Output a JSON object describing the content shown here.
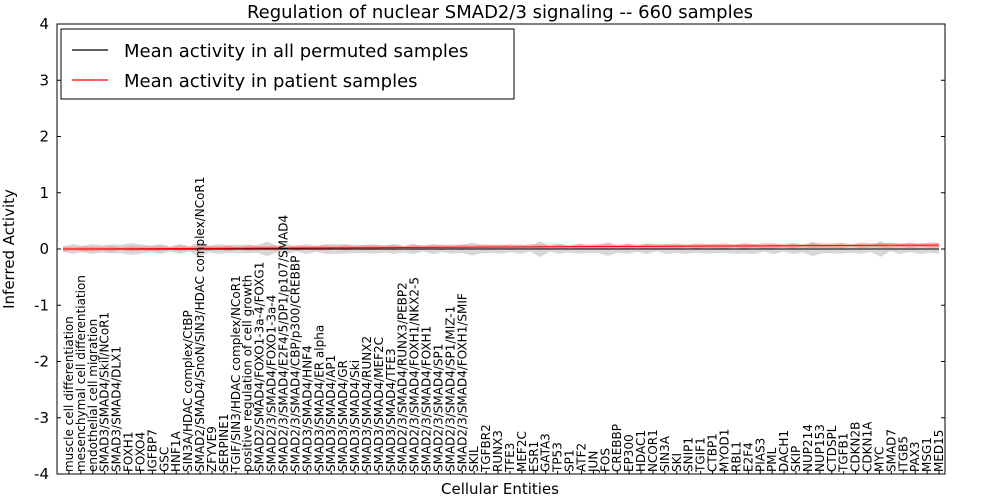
{
  "chart_data": {
    "type": "line",
    "title": "Regulation of nuclear SMAD2/3 signaling -- 660 samples",
    "xlabel": "Cellular Entities",
    "ylabel": "Inferred Activity",
    "ylim": [
      -4,
      4
    ],
    "yticks": [
      "-4",
      "-3",
      "-2",
      "-1",
      "0",
      "1",
      "2",
      "3",
      "4"
    ],
    "legend_position": "top-left",
    "series": [
      {
        "name": "Mean activity in all permuted samples",
        "color": "#000000"
      },
      {
        "name": "Mean activity in patient samples",
        "color": "#ff0000"
      }
    ],
    "categories": [
      "muscle cell differentiation",
      "mesenchymal cell differentiation",
      "endothelial cell migration",
      "SMAD3/SMAD4/Skil/NCoR1",
      "SMAD3/SMAD4/DLX1",
      "FOXH1",
      "FOXO4",
      "IGFBP7",
      "GSC",
      "HNF1A",
      "SIN3A/HDAC complex/CtBP",
      "SMAD2/SMAD4/SnoN/SIN3/HDAC complex/NCoR1",
      "ZFYVE9",
      "SERPINE1",
      "TGIF/SIN3/HDAC complex/NCoR1",
      "positive regulation of cell growth",
      "SMAD2/SMAD4/FOXO1-3a-4/FOXG1",
      "SMAD2/3/SMAD4/FOXO1-3a-4",
      "SMAD2/3/SMAD4/E2F4/5/DP1/p107/SMAD4",
      "SMAD2/3/SMAD4/CBP/p300/CREBBP",
      "SMAD3/SMAD4/HNF4",
      "SMAD3/SMAD4/ER alpha",
      "SMAD3/SMAD4/AP1",
      "SMAD3/SMAD4/GR",
      "SMAD3/SMAD4/Ski",
      "SMAD3/SMAD4/RUNX2",
      "SMAD3/SMAD4/MEF2C",
      "SMAD3/SMAD4/TFE3",
      "SMAD2/3/SMAD4/RUNX3/PEBP2",
      "SMAD2/3/SMAD4/FOXH1/NKX2-5",
      "SMAD2/3/SMAD4/FOXH1",
      "SMAD2/3/SMAD4/SP1",
      "SMAD2/3/SMAD4/SP1/MIZ-1",
      "SMAD2/3/SMAD4/FOXH1/SMIF",
      "SKIL",
      "TGFBR2",
      "RUNX3",
      "TFE3",
      "MEF2C",
      "ESR1",
      "GATA3",
      "TP53",
      "SP1",
      "ATF2",
      "JUN",
      "FOS",
      "CREBBP",
      "EP300",
      "HDAC1",
      "NCOR1",
      "SIN3A",
      "SKI",
      "SNIP1",
      "TGIF1",
      "CTBP1",
      "MYOD1",
      "RBL1",
      "E2F4",
      "PIAS3",
      "PML",
      "DACH1",
      "SKIP",
      "NUP214",
      "NUP153",
      "CTDSPL",
      "TGFB1",
      "CDKN2B",
      "CDKN1A",
      "MYC",
      "SMAD7",
      "ITGB5",
      "PAX3",
      "MSG1",
      "MED15"
    ],
    "permuted_mean": 0.0,
    "patient_mean_start": 0.0,
    "patient_mean_end": 0.07
  }
}
